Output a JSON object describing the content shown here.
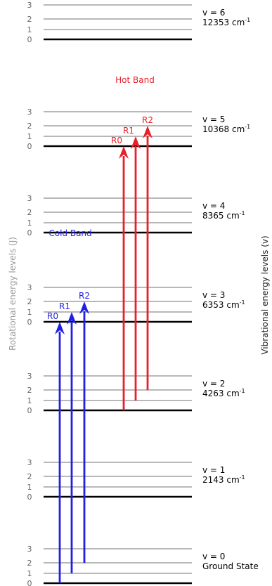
{
  "axes": {
    "left_label": "Rotational energy levels (J)",
    "right_label": "Vibrational energy levels (v)"
  },
  "vibrational_levels": [
    {
      "v_label": "v = 0",
      "energy_label": "Ground State",
      "unit": ""
    },
    {
      "v_label": "v = 1",
      "energy_label": "2143 cm",
      "unit": "-1"
    },
    {
      "v_label": "v = 2",
      "energy_label": "4263 cm",
      "unit": "-1"
    },
    {
      "v_label": "v = 3",
      "energy_label": "6353 cm",
      "unit": "-1"
    },
    {
      "v_label": "v = 4",
      "energy_label": "8365 cm",
      "unit": "-1"
    },
    {
      "v_label": "v = 5",
      "energy_label": "10368 cm",
      "unit": "-1"
    },
    {
      "v_label": "v = 6",
      "energy_label": "12353 cm",
      "unit": "-1"
    }
  ],
  "rotational_levels": [
    "0",
    "1",
    "2",
    "3"
  ],
  "bands": [
    {
      "name": "Cold Band",
      "color": "#1f1fe6",
      "from_v": 0,
      "to_v": 3,
      "transitions": [
        {
          "label": "R0",
          "from_J": 0,
          "to_J": 0
        },
        {
          "label": "R1",
          "from_J": 1,
          "to_J": 1
        },
        {
          "label": "R2",
          "from_J": 2,
          "to_J": 2
        }
      ]
    },
    {
      "name": "Hot Band",
      "color": "#e8202a",
      "from_v": 2,
      "to_v": 5,
      "transitions": [
        {
          "label": "R0",
          "from_J": 0,
          "to_J": 0
        },
        {
          "label": "R1",
          "from_J": 1,
          "to_J": 1
        },
        {
          "label": "R2",
          "from_J": 2,
          "to_J": 2
        }
      ]
    }
  ],
  "colors": {
    "ground_line": "#000000",
    "rot_line": "#b8b8b8",
    "label_text": "#000000",
    "axis_text": "#999999",
    "rot_number": "#666666"
  }
}
